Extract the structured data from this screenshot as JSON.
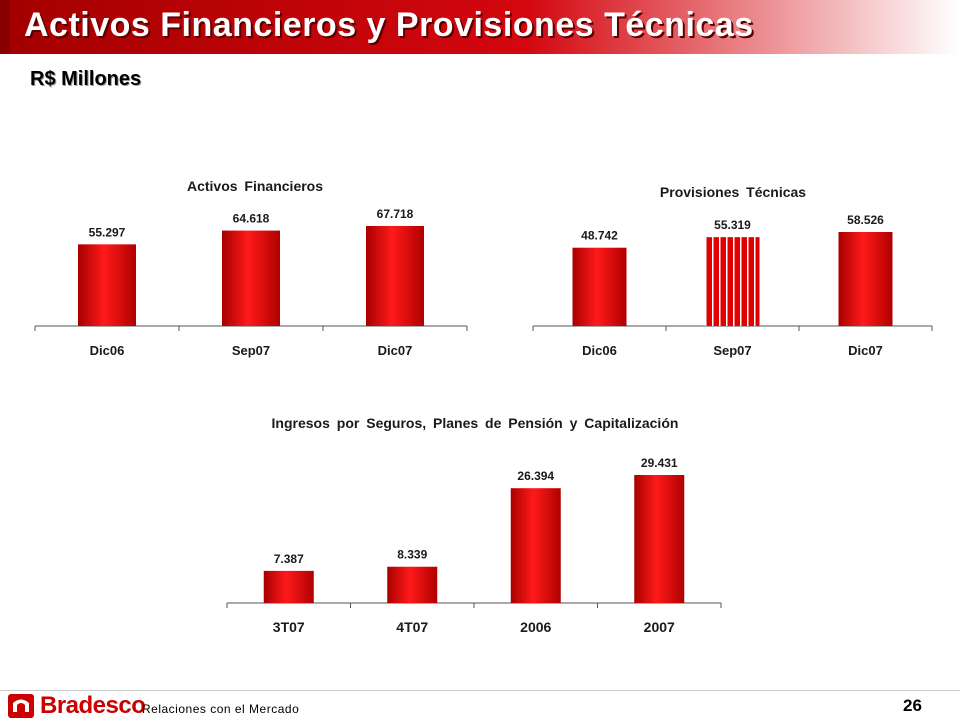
{
  "title": "Activos Financieros y Provisiones Técnicas",
  "subtitle": "R$ Millones",
  "footer": {
    "brand": "Bradesco",
    "section": "Relaciones con el Mercado",
    "page_number": "26"
  },
  "colors": {
    "bar_red": "#e00000",
    "bar_dark": "#a80000",
    "title_red": "#cc0000"
  },
  "chart_data": [
    {
      "type": "bar",
      "title": "Activos Financieros",
      "categories": [
        "Dic06",
        "Sep07",
        "Dic07"
      ],
      "values": [
        55297,
        64618,
        67718
      ],
      "value_labels": [
        "55.297",
        "64.618",
        "67.718"
      ],
      "xlabel": "",
      "ylabel": "",
      "grid": false
    },
    {
      "type": "bar",
      "title": "Provisiones Técnicas",
      "categories": [
        "Dic06",
        "Sep07",
        "Dic07"
      ],
      "values": [
        48742,
        55319,
        58526
      ],
      "value_labels": [
        "48.742",
        "55.319",
        "58.526"
      ],
      "xlabel": "",
      "ylabel": "",
      "grid": false
    },
    {
      "type": "bar",
      "title": "Ingresos por Seguros, Planes de Pensión y Capitalización",
      "categories": [
        "3T07",
        "4T07",
        "2006",
        "2007"
      ],
      "values": [
        7387,
        8339,
        26394,
        29431
      ],
      "value_labels": [
        "7.387",
        "8.339",
        "26.394",
        "29.431"
      ],
      "xlabel": "",
      "ylabel": "",
      "grid": false
    }
  ]
}
